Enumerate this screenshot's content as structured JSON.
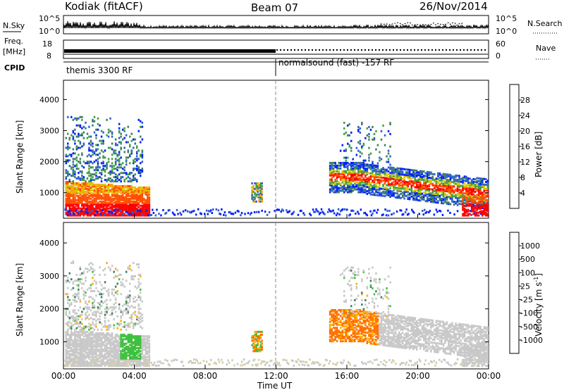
{
  "header": {
    "station": "Kodiak (fitACF)",
    "beam": "Beam 07",
    "date": "26/Nov/2014"
  },
  "status": {
    "left_labels": {
      "nsky": "N.Sky",
      "freq": "Freq.",
      "freq_unit": "[MHz]",
      "cpid": "CPID"
    },
    "right_labels": {
      "nsearch": "N.Search",
      "nave": "Nave"
    },
    "nsky_ticks": [
      "10^5",
      "10^0"
    ],
    "nsearch_ticks": [
      "10^5",
      "10^0"
    ],
    "freq_ticks": [
      "18",
      "8"
    ],
    "nave_ticks": [
      "60",
      "0"
    ],
    "programs": [
      {
        "label": "themis 3300 RF",
        "start_hour": 0
      },
      {
        "label": "normalsound (fast) -157 RF",
        "start_hour": 12
      }
    ]
  },
  "chart_data": [
    {
      "type": "heatmap",
      "panel": "power",
      "ylabel": "Slant Range [km]",
      "yticks": [
        1000,
        2000,
        3000,
        4000
      ],
      "ylim": [
        200,
        4600
      ],
      "xlim": [
        0,
        24
      ],
      "colorbar": {
        "label": "Power [dB]",
        "ticks": [
          "28",
          "24",
          "20",
          "16",
          "12",
          "8",
          "4"
        ],
        "colors": [
          "#0020ff",
          "#2f5fd0",
          "#3f7f60",
          "#40a040",
          "#d8c800",
          "#ffa000",
          "#ff5000",
          "#ff0000"
        ]
      },
      "regions": [
        {
          "t": [
            0.0,
            5.0
          ],
          "r": [
            300,
            3500
          ],
          "desc": "intense near-range + scattered far echoes"
        },
        {
          "t": [
            10.5,
            11.3
          ],
          "r": [
            700,
            1400
          ],
          "desc": "isolated patch"
        },
        {
          "t": [
            15.0,
            24.0
          ],
          "r": [
            300,
            3500
          ],
          "desc": "descending band"
        }
      ]
    },
    {
      "type": "heatmap",
      "panel": "velocity",
      "ylabel": "Slant Range [km]",
      "yticks": [
        1000,
        2000,
        3000,
        4000
      ],
      "ylim": [
        200,
        4600
      ],
      "xlim": [
        0,
        24
      ],
      "xticks": [
        "00:00",
        "04:00",
        "08:00",
        "12:00",
        "16:00",
        "20:00",
        "00:00"
      ],
      "xlabel": "Time UT",
      "colorbar": {
        "label": "Velocity [m s-1]",
        "ticks": [
          "1000",
          "500",
          "100",
          "25",
          "-25",
          "-100",
          "-500",
          "-1000"
        ],
        "colors": [
          "#2050c0",
          "#3f7f60",
          "#40c040",
          "#c8c8c8",
          "#c8c8c8",
          "#ffb000",
          "#ff7000",
          "#ff0000"
        ]
      }
    }
  ]
}
